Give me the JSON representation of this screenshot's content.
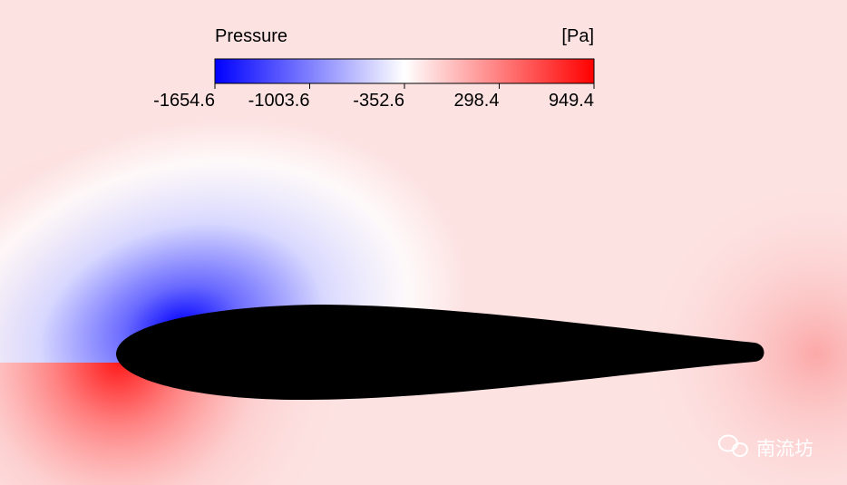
{
  "legend": {
    "title": "Pressure",
    "unit": "[Pa]",
    "ticks": [
      "-1654.6",
      "-1003.6",
      "-352.6",
      "298.4",
      "949.4"
    ]
  },
  "watermark": "南流坊"
}
